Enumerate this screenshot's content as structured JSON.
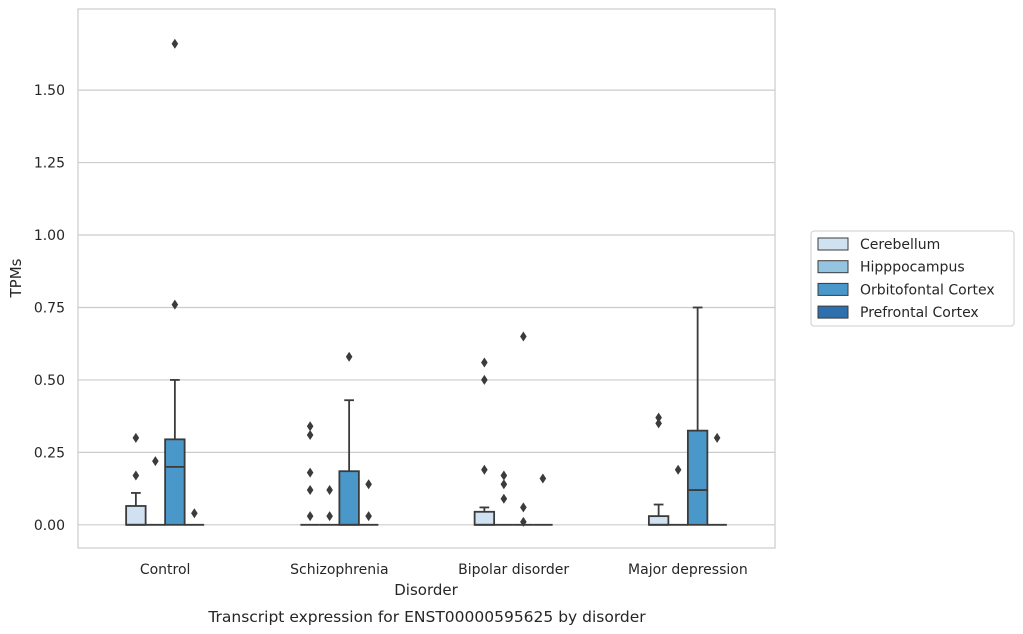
{
  "chart_data": {
    "type": "box",
    "title": "",
    "caption": "Transcript expression for ENST00000595625 by disorder",
    "xlabel": "Disorder",
    "ylabel": "TPMs",
    "categories": [
      "Control",
      "Schizophrenia",
      "Bipolar disorder",
      "Major depression"
    ],
    "ylim": [
      -0.08,
      1.78
    ],
    "yticks": [
      0.0,
      0.25,
      0.5,
      0.75,
      1.0,
      1.25,
      1.5
    ],
    "ytick_labels": [
      "0.00",
      "0.25",
      "0.50",
      "0.75",
      "1.00",
      "1.25",
      "1.50"
    ],
    "grid": "horizontal",
    "legend_position": "right",
    "series": [
      {
        "name": "Cerebellum",
        "color": "#d0e1f2",
        "boxes": [
          {
            "q1": 0.0,
            "median": 0.0,
            "q3": 0.065,
            "whisker_low": 0.0,
            "whisker_high": 0.11,
            "outliers": [
              0.3,
              0.17
            ]
          },
          {
            "q1": 0.0,
            "median": 0.0,
            "q3": 0.0,
            "whisker_low": 0.0,
            "whisker_high": 0.0,
            "outliers": [
              0.34,
              0.31,
              0.18,
              0.12,
              0.03
            ]
          },
          {
            "q1": 0.0,
            "median": 0.0,
            "q3": 0.045,
            "whisker_low": 0.0,
            "whisker_high": 0.06,
            "outliers": [
              0.56,
              0.5,
              0.19
            ]
          },
          {
            "q1": 0.0,
            "median": 0.0,
            "q3": 0.03,
            "whisker_low": 0.0,
            "whisker_high": 0.07,
            "outliers": [
              0.37,
              0.35
            ]
          }
        ]
      },
      {
        "name": "Hipppocampus",
        "color": "#94c4df",
        "boxes": [
          {
            "q1": 0.0,
            "median": 0.0,
            "q3": 0.0,
            "whisker_low": 0.0,
            "whisker_high": 0.0,
            "outliers": [
              0.22
            ]
          },
          {
            "q1": 0.0,
            "median": 0.0,
            "q3": 0.0,
            "whisker_low": 0.0,
            "whisker_high": 0.0,
            "outliers": [
              0.12,
              0.03
            ]
          },
          {
            "q1": 0.0,
            "median": 0.0,
            "q3": 0.0,
            "whisker_low": 0.0,
            "whisker_high": 0.0,
            "outliers": [
              0.17,
              0.14,
              0.09
            ]
          },
          {
            "q1": 0.0,
            "median": 0.0,
            "q3": 0.0,
            "whisker_low": 0.0,
            "whisker_high": 0.0,
            "outliers": [
              0.19
            ]
          }
        ]
      },
      {
        "name": "Orbitofontal Cortex",
        "color": "#4a98c9",
        "boxes": [
          {
            "q1": 0.0,
            "median": 0.2,
            "q3": 0.295,
            "whisker_low": 0.0,
            "whisker_high": 0.5,
            "outliers": [
              1.66,
              0.76
            ]
          },
          {
            "q1": 0.0,
            "median": 0.0,
            "q3": 0.185,
            "whisker_low": 0.0,
            "whisker_high": 0.43,
            "outliers": [
              0.58
            ]
          },
          {
            "q1": 0.0,
            "median": 0.0,
            "q3": 0.0,
            "whisker_low": 0.0,
            "whisker_high": 0.0,
            "outliers": [
              0.65,
              0.06,
              0.01
            ]
          },
          {
            "q1": 0.0,
            "median": 0.12,
            "q3": 0.325,
            "whisker_low": 0.0,
            "whisker_high": 0.75,
            "outliers": []
          }
        ]
      },
      {
        "name": "Prefrontal Cortex",
        "color": "#2e6fae",
        "boxes": [
          {
            "q1": 0.0,
            "median": 0.0,
            "q3": 0.0,
            "whisker_low": 0.0,
            "whisker_high": 0.0,
            "outliers": [
              0.04
            ]
          },
          {
            "q1": 0.0,
            "median": 0.0,
            "q3": 0.0,
            "whisker_low": 0.0,
            "whisker_high": 0.0,
            "outliers": [
              0.14,
              0.03
            ]
          },
          {
            "q1": 0.0,
            "median": 0.0,
            "q3": 0.0,
            "whisker_low": 0.0,
            "whisker_high": 0.0,
            "outliers": [
              0.16
            ]
          },
          {
            "q1": 0.0,
            "median": 0.0,
            "q3": 0.0,
            "whisker_low": 0.0,
            "whisker_high": 0.0,
            "outliers": [
              0.3
            ]
          }
        ]
      }
    ]
  }
}
